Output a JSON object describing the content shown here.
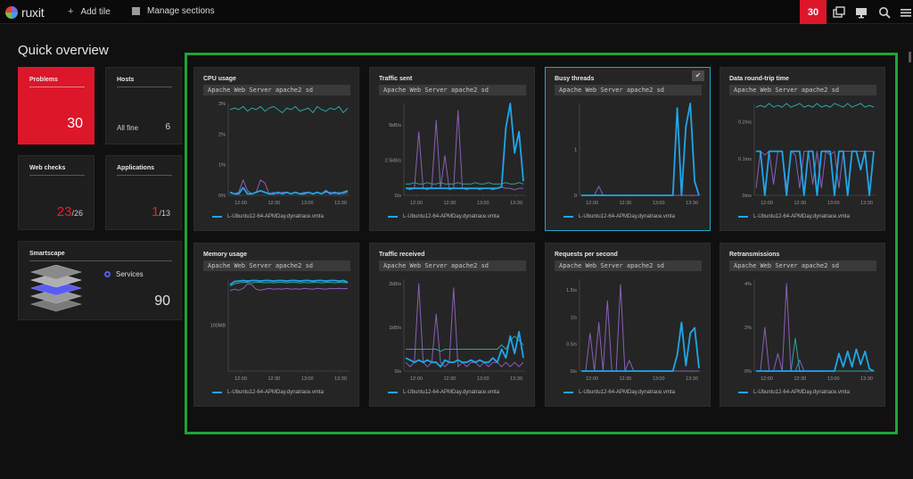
{
  "topbar": {
    "logo": "ruxit",
    "add_tile": "Add tile",
    "manage_sections": "Manage sections",
    "problems_count": "30",
    "icons": [
      "windows-icon",
      "monitor-icon",
      "search-icon",
      "menu-icon"
    ]
  },
  "overview": {
    "title": "Quick overview",
    "problems": {
      "label": "Problems",
      "value": "30"
    },
    "hosts": {
      "label": "Hosts",
      "status": "All fine",
      "value": "6"
    },
    "web_checks": {
      "label": "Web checks",
      "value": "23",
      "total": "/26"
    },
    "applications": {
      "label": "Applications",
      "value": "1",
      "total": "/13"
    },
    "smartscape": {
      "label": "Smartscape",
      "services_label": "Services",
      "value": "90"
    }
  },
  "colors": {
    "accent_red": "#dc172a",
    "series_blue": "#1fa6ea",
    "series_purple": "#8b5fb8",
    "series_teal": "#2aa6a0",
    "frame_green": "#1da436"
  },
  "x_ticks": [
    "12:00",
    "12:30",
    "13:00",
    "13:30"
  ],
  "legend_label": "L-Ubuntu12-64-APMDay.dynatrace.vmta",
  "charts": [
    {
      "title": "CPU usage",
      "subtitle": "Apache Web Server apache2 sd",
      "chart_data": {
        "type": "line",
        "y_ticks": [
          "3%",
          "2%",
          "1%",
          "0%"
        ],
        "ylim": [
          0,
          3
        ],
        "series": [
          {
            "color": "#2aa6a0",
            "values": [
              2.8,
              2.85,
              2.8,
              2.9,
              2.75,
              2.85,
              2.8,
              2.9,
              2.75,
              2.85,
              2.9,
              2.8,
              2.7,
              2.85,
              2.8,
              2.9,
              2.75,
              2.8,
              2.85,
              2.7,
              2.9,
              2.8,
              2.75,
              2.85,
              2.8,
              2.9,
              2.7,
              2.85
            ]
          },
          {
            "color": "#8b5fb8",
            "values": [
              0.1,
              0.05,
              0.1,
              0.5,
              0.15,
              0.05,
              0.1,
              0.5,
              0.4,
              0.05,
              0.1,
              0.05,
              0.1,
              0.1,
              0.05,
              0.1,
              0.05,
              0.1,
              0.1,
              0.05,
              0.1,
              0.05,
              0.1,
              0.1,
              0.05,
              0.1,
              0.05,
              0.1
            ]
          },
          {
            "color": "#1fa6ea",
            "values": [
              0.1,
              0.05,
              0.05,
              0.25,
              0.05,
              0.05,
              0.1,
              0.15,
              0.1,
              0.05,
              0.05,
              0.1,
              0.05,
              0.1,
              0.05,
              0.1,
              0.05,
              0.05,
              0.1,
              0.05,
              0.1,
              0.05,
              0.15,
              0.05,
              0.1,
              0.05,
              0.1,
              0.15
            ]
          }
        ]
      }
    },
    {
      "title": "Traffic sent",
      "subtitle": "Apache Web Server apache2 sd",
      "chart_data": {
        "type": "line",
        "y_ticks": [
          "5kB/s",
          "2.5kB/s",
          "0/s"
        ],
        "ylim": [
          0,
          6.5
        ],
        "series": [
          {
            "color": "#8b5fb8",
            "values": [
              0.5,
              0.4,
              0.5,
              4.5,
              0.5,
              0.4,
              0.6,
              5.3,
              0.5,
              2.8,
              0.4,
              0.5,
              6.0,
              0.5,
              0.4,
              0.5,
              0.5,
              0.4,
              0.5,
              0.5,
              0.4,
              0.5,
              0.6,
              0.5,
              0.5,
              0.4,
              0.5,
              0.5
            ]
          },
          {
            "color": "#2aa6a0",
            "values": [
              0.8,
              0.8,
              0.9,
              0.8,
              0.8,
              0.9,
              0.8,
              0.8,
              0.9,
              0.8,
              0.8,
              0.8,
              0.9,
              0.8,
              0.8,
              0.8,
              0.9,
              0.8,
              0.8,
              0.9,
              0.8,
              0.8,
              0.8,
              0.9,
              0.8,
              0.8,
              0.9,
              0.8
            ]
          },
          {
            "color": "#1fa6ea",
            "values": [
              0.5,
              0.5,
              0.5,
              0.5,
              0.5,
              0.5,
              0.5,
              0.5,
              0.5,
              0.5,
              0.5,
              0.5,
              0.5,
              0.5,
              0.5,
              0.5,
              0.5,
              0.5,
              0.5,
              0.5,
              0.5,
              0.5,
              0.6,
              4.8,
              6.5,
              3.0,
              4.5,
              1.0
            ]
          }
        ]
      }
    },
    {
      "title": "Busy threads",
      "subtitle": "Apache Web Server apache2 sd",
      "selected": true,
      "chart_data": {
        "type": "line",
        "y_ticks": [
          "1",
          "0"
        ],
        "ylim": [
          0,
          2
        ],
        "series": [
          {
            "color": "#8b5fb8",
            "values": [
              0,
              0,
              0,
              0,
              0.2,
              0,
              0,
              0,
              0,
              0,
              0,
              0,
              0,
              0,
              0,
              0,
              0,
              0,
              0,
              0,
              0,
              0,
              0,
              0,
              0,
              0,
              0,
              0
            ]
          },
          {
            "color": "#1fa6ea",
            "values": [
              0,
              0,
              0,
              0,
              0,
              0,
              0,
              0,
              0,
              0,
              0,
              0,
              0,
              0,
              0,
              0,
              0,
              0,
              0,
              0,
              0,
              0,
              1.9,
              0,
              1.5,
              2.0,
              0.3,
              0
            ]
          }
        ]
      }
    },
    {
      "title": "Data round-trip time",
      "subtitle": "Apache Web Server apache2 sd",
      "chart_data": {
        "type": "line",
        "y_ticks": [
          "0.2ms",
          "0.1ms",
          "0ms"
        ],
        "ylim": [
          0,
          0.25
        ],
        "series": [
          {
            "color": "#2aa6a0",
            "values": [
              0.24,
              0.245,
              0.24,
              0.25,
              0.24,
              0.245,
              0.24,
              0.25,
              0.24,
              0.245,
              0.25,
              0.24,
              0.245,
              0.24,
              0.25,
              0.24,
              0.245,
              0.24,
              0.25,
              0.245,
              0.24,
              0.25,
              0.24,
              0.245,
              0.25,
              0.24,
              0.245,
              0.24
            ]
          },
          {
            "color": "#8b5fb8",
            "values": [
              0.02,
              0.12,
              0.11,
              0.12,
              0.03,
              0.12,
              0.12,
              0.02,
              0.12,
              0.11,
              0.02,
              0.12,
              0.12,
              0.03,
              0.12,
              0.02,
              0.12,
              0.11,
              0.12,
              0.02,
              0.12,
              0.12,
              0.12,
              0.12,
              0.12,
              0.12,
              0.12,
              0.12
            ]
          },
          {
            "color": "#1fa6ea",
            "values": [
              0.12,
              0.12,
              0.0,
              0.12,
              0.12,
              0.12,
              0.12,
              0.0,
              0.12,
              0.12,
              0.12,
              0.0,
              0.12,
              0.12,
              0.0,
              0.12,
              0.12,
              0.12,
              0.0,
              0.12,
              0.12,
              0.0,
              0.12,
              0.12,
              0.07,
              0.12,
              0.0,
              0.12
            ]
          }
        ]
      }
    },
    {
      "title": "Memory usage",
      "subtitle": "Apache Web Server apache2 sd",
      "chart_data": {
        "type": "line",
        "y_ticks": [
          "100MB"
        ],
        "ylim": [
          0,
          200
        ],
        "series": [
          {
            "color": "#8b5fb8",
            "values": [
              175,
              178,
              176,
              180,
              190,
              188,
              178,
              176,
              178,
              180,
              178,
              179,
              178,
              180,
              178,
              179,
              178,
              180,
              179,
              178,
              180,
              179,
              178,
              180,
              179,
              180,
              179,
              180
            ]
          },
          {
            "color": "#2aa6a0",
            "values": [
              185,
              190,
              192,
              193,
              193,
              192,
              193,
              193,
              192,
              193,
              192,
              193,
              193,
              192,
              193,
              193,
              192,
              193,
              192,
              193,
              193,
              192,
              193,
              193,
              192,
              193,
              193,
              192
            ]
          },
          {
            "color": "#1fa6ea",
            "values": [
              188,
              195,
              196,
              197,
              196,
              197,
              197,
              196,
              197,
              197,
              196,
              197,
              197,
              196,
              197,
              197,
              196,
              197,
              197,
              196,
              197,
              197,
              196,
              197,
              197,
              196,
              197,
              193
            ]
          }
        ]
      }
    },
    {
      "title": "Traffic received",
      "subtitle": "Apache Web Server apache2 sd",
      "chart_data": {
        "type": "line",
        "y_ticks": [
          "2kB/s",
          "1kB/s",
          "0/s"
        ],
        "ylim": [
          0,
          2.1
        ],
        "series": [
          {
            "color": "#8b5fb8",
            "values": [
              0.2,
              0.1,
              0.2,
              2.0,
              0.2,
              0.1,
              0.2,
              1.3,
              0.2,
              0.1,
              0.2,
              1.9,
              0.1,
              0.2,
              0.1,
              0.2,
              0.2,
              0.1,
              0.2,
              0.1,
              0.2,
              0.2,
              0.1,
              0.2,
              0.1,
              0.2,
              0.1,
              0.2
            ]
          },
          {
            "color": "#2aa6a0",
            "values": [
              0.5,
              0.5,
              0.5,
              0.5,
              0.5,
              0.5,
              0.5,
              0.5,
              0.45,
              0.5,
              0.5,
              0.5,
              0.5,
              0.5,
              0.5,
              0.5,
              0.5,
              0.5,
              0.5,
              0.5,
              0.5,
              0.5,
              0.6,
              0.5,
              0.7,
              0.8,
              0.7,
              0.6
            ]
          },
          {
            "color": "#1fa6ea",
            "values": [
              0.3,
              0.25,
              0.2,
              0.25,
              0.2,
              0.25,
              0.2,
              0.2,
              0.1,
              0.25,
              0.2,
              0.2,
              0.25,
              0.2,
              0.2,
              0.25,
              0.2,
              0.25,
              0.2,
              0.2,
              0.3,
              0.2,
              0.5,
              0.3,
              0.8,
              0.4,
              0.9,
              0.3
            ]
          }
        ]
      }
    },
    {
      "title": "Requests per second",
      "subtitle": "Apache Web Server apache2 sd",
      "chart_data": {
        "type": "line",
        "y_ticks": [
          "1.5/s",
          "1/s",
          "0.5/s",
          "0/s"
        ],
        "ylim": [
          0,
          1.7
        ],
        "series": [
          {
            "color": "#8b5fb8",
            "values": [
              0.0,
              0.0,
              0.7,
              0.0,
              0.9,
              0.0,
              1.3,
              0.0,
              0.0,
              1.6,
              0.0,
              0.2,
              0.0,
              0.0,
              0.0,
              0.0,
              0.0,
              0.0,
              0.0,
              0.0,
              0.0,
              0.0,
              0.0,
              0.0,
              0.0,
              0.0,
              0.0,
              0.0
            ]
          },
          {
            "color": "#1fa6ea",
            "values": [
              0,
              0,
              0,
              0,
              0,
              0,
              0,
              0,
              0,
              0,
              0,
              0,
              0,
              0,
              0,
              0,
              0,
              0,
              0,
              0,
              0,
              0,
              0.3,
              0.9,
              0.1,
              0.7,
              0.8,
              0.05
            ]
          }
        ]
      }
    },
    {
      "title": "Retransmissions",
      "subtitle": "Apache Web Server apache2 sd",
      "chart_data": {
        "type": "line",
        "y_ticks": [
          "4%",
          "2%",
          "0%"
        ],
        "ylim": [
          0,
          4.2
        ],
        "series": [
          {
            "color": "#8b5fb8",
            "values": [
              0,
              0,
              2.0,
              0,
              0,
              0.8,
              0,
              4.0,
              0,
              0,
              0.5,
              0,
              0,
              0,
              0,
              0,
              0,
              0,
              0,
              0,
              0,
              0,
              0,
              0,
              0,
              0,
              0,
              0
            ]
          },
          {
            "color": "#2aa6a0",
            "values": [
              0,
              0,
              0,
              0,
              0,
              0,
              0,
              0,
              0,
              1.5,
              0,
              0,
              0,
              0,
              0,
              0,
              0,
              0,
              0,
              0,
              0,
              0,
              0,
              0,
              0,
              0,
              0,
              0
            ]
          },
          {
            "color": "#1fa6ea",
            "values": [
              0,
              0,
              0,
              0,
              0,
              0,
              0,
              0,
              0,
              0,
              0,
              0,
              0,
              0,
              0,
              0,
              0,
              0,
              0,
              0.8,
              0.2,
              0.9,
              0.2,
              1.0,
              0.3,
              0.9,
              0.1,
              0
            ]
          }
        ]
      }
    }
  ]
}
